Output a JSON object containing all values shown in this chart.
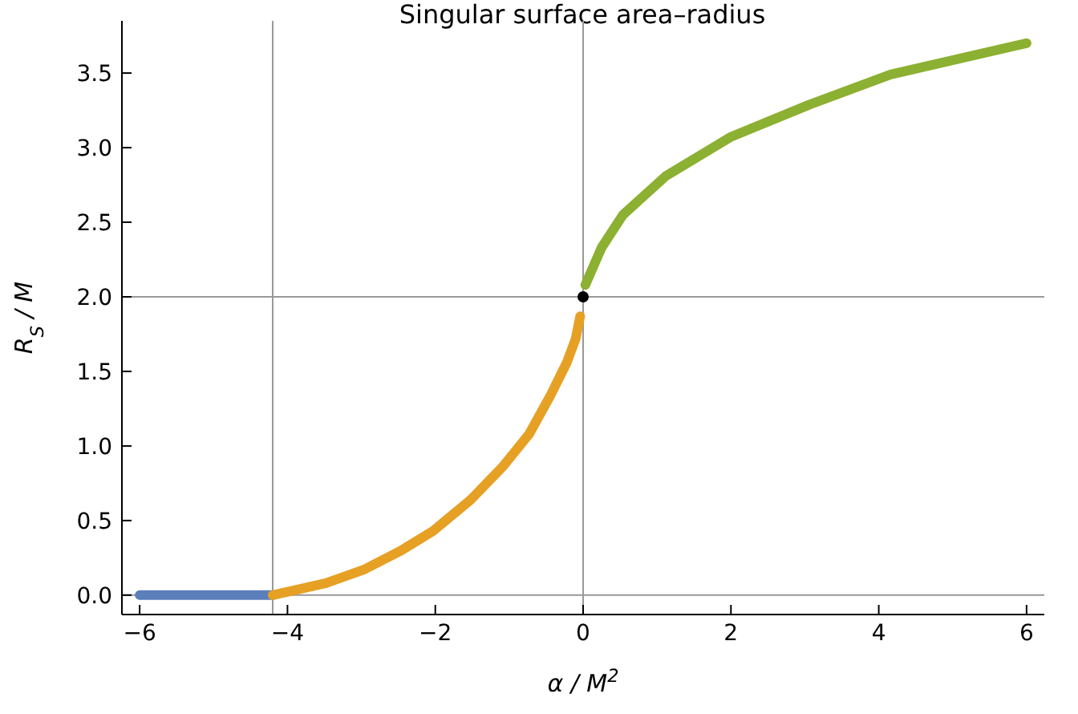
{
  "chart_data": {
    "type": "line",
    "title": "Singular surface area–radius",
    "xlabel": "α / M$^{2}$",
    "ylabel": "R$_{S}$ / M",
    "xlim": [
      -6.24,
      6.24
    ],
    "xticks": [
      {
        "value": -6,
        "label": "−6"
      },
      {
        "value": -4,
        "label": "−4"
      },
      {
        "value": -2,
        "label": "−2"
      },
      0,
      2,
      4,
      6
    ],
    "ylim": [
      -0.13,
      3.85
    ],
    "yticks": [
      {
        "value": 0,
        "label": "0.0"
      },
      0.5,
      {
        "value": 1,
        "label": "1.0"
      },
      1.5,
      {
        "value": 2,
        "label": "2.0"
      },
      2.5,
      {
        "value": 3,
        "label": "3.0"
      },
      3.5
    ],
    "grid": false,
    "marker": "none",
    "line_style": "solid",
    "series": [
      {
        "color": "#5b7fbb",
        "x": [
          -6,
          -5.5,
          -5,
          -4.5,
          -4.2
        ],
        "values": [
          0,
          0,
          0,
          0,
          0
        ]
      },
      {
        "color": "#e6a024",
        "x": [
          -4.2,
          -3.48,
          -2.97,
          -2.46,
          -2.03,
          -1.52,
          -1.09,
          -0.73,
          -0.44,
          -0.22,
          -0.1,
          -0.04
        ],
        "values": [
          0,
          0.08,
          0.17,
          0.3,
          0.43,
          0.64,
          0.86,
          1.08,
          1.34,
          1.56,
          1.72,
          1.87
        ]
      },
      {
        "color": "#8cb031",
        "x": [
          0.03,
          0.25,
          0.54,
          1.12,
          1.99,
          3.07,
          4.16,
          6
        ],
        "values": [
          2.08,
          2.33,
          2.55,
          2.81,
          3.07,
          3.29,
          3.49,
          3.7
        ]
      },
      {
        "type": "scatter",
        "marker": "circle",
        "color": "#000000",
        "x": [
          0
        ],
        "values": [
          2
        ]
      }
    ],
    "ref_lines": [
      {
        "axis": "x",
        "value": -4.2,
        "color": "#999999"
      },
      {
        "axis": "x",
        "value": 0,
        "color": "#999999"
      },
      {
        "axis": "y",
        "value": 2,
        "color": "#999999"
      },
      {
        "axis": "y",
        "value": 0,
        "color": "#999999"
      }
    ]
  }
}
